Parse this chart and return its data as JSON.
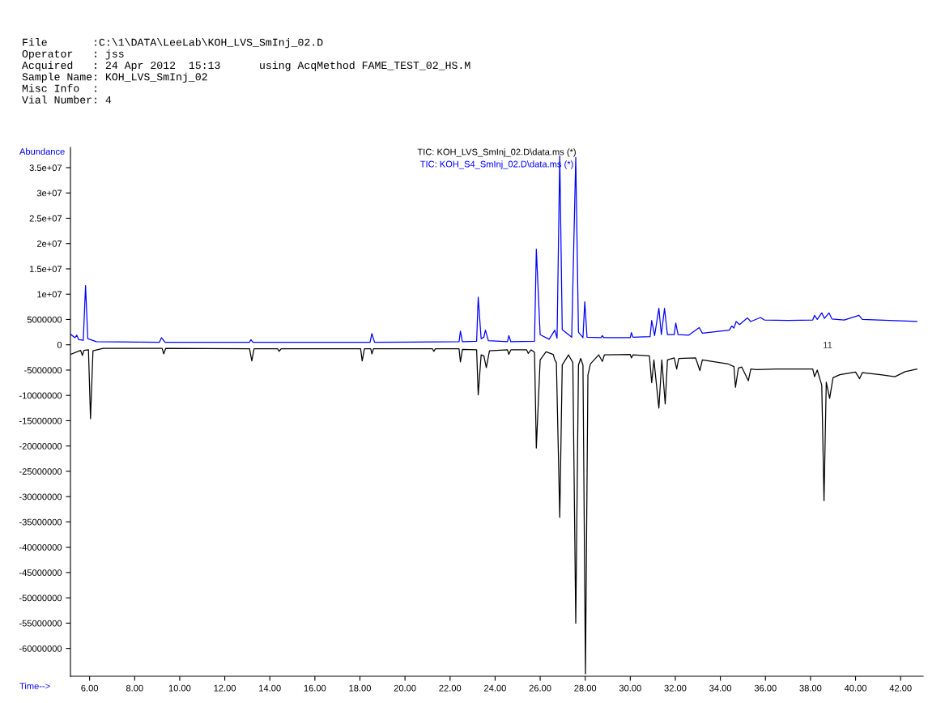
{
  "chart_data": {
    "type": "line",
    "ylabel": "Abundance",
    "xlabel": "Time-->",
    "title": "File       :C:\\1\\DATA\\LeeLab\\KOH_LVS_SmInj_02.D\nOperator   : jss\nAcquired   : 24 Apr 2012  15:13      using AcqMethod FAME_TEST_02_HS.M\nSample Name: KOH_LVS_SmInj_02\nMisc Info  :\nVial Number: 4",
    "annotations": [
      "11"
    ],
    "series": [
      {
        "name": "TIC: KOH_LVS_SmInj_02.D\\data.ms (*)",
        "color": "#000000",
        "x": [
          5.15,
          5.6,
          5.68,
          5.75,
          5.95,
          6.04,
          6.15,
          6.6,
          9.22,
          9.29,
          9.38,
          13.1,
          13.2,
          13.3,
          14.35,
          14.41,
          14.5,
          18.03,
          18.1,
          18.2,
          18.48,
          18.53,
          18.6,
          21.22,
          21.28,
          21.35,
          22.4,
          22.46,
          22.55,
          23.18,
          23.25,
          23.38,
          23.5,
          23.61,
          23.75,
          24.55,
          24.61,
          24.7,
          25.4,
          25.47,
          25.6,
          25.75,
          25.83,
          26.0,
          26.26,
          26.58,
          26.65,
          26.72,
          26.87,
          26.98,
          27.26,
          27.45,
          27.58,
          27.7,
          27.8,
          27.9,
          28.01,
          28.12,
          28.23,
          28.6,
          28.76,
          28.85,
          30.0,
          30.05,
          30.12,
          30.85,
          30.95,
          31.05,
          31.27,
          31.4,
          31.55,
          31.65,
          31.95,
          32.06,
          32.15,
          32.9,
          33.09,
          33.2,
          34.35,
          34.6,
          34.67,
          34.8,
          34.95,
          35.24,
          35.35,
          35.6,
          36.5,
          38.1,
          38.18,
          38.3,
          38.5,
          38.6,
          38.7,
          38.85,
          39.0,
          39.3,
          40.0,
          40.18,
          40.3,
          41.11,
          41.75,
          42.2,
          42.72
        ],
        "values": [
          -1900000,
          -1100000,
          -2100000,
          -1100000,
          -1000000,
          -14600000,
          -1200000,
          -700000,
          -700000,
          -1800000,
          -700000,
          -800000,
          -3200000,
          -800000,
          -800000,
          -1300000,
          -800000,
          -800000,
          -3200000,
          -800000,
          -800000,
          -1800000,
          -800000,
          -800000,
          -1300000,
          -800000,
          -800000,
          -3400000,
          -900000,
          -1000000,
          -9900000,
          -2000000,
          -2200000,
          -4500000,
          -1200000,
          -1000000,
          -1900000,
          -1000000,
          -1000000,
          -1700000,
          -1000000,
          -1500000,
          -20400000,
          -3000000,
          -1400000,
          -1900000,
          -3000000,
          -3500000,
          -34100000,
          -4000000,
          -2000000,
          -3500000,
          -55000000,
          -4000000,
          -2700000,
          -4000000,
          -65000000,
          -6000000,
          -3800000,
          -2000000,
          -3300000,
          -2000000,
          -1900000,
          -2600000,
          -2000000,
          -2200000,
          -7500000,
          -3000000,
          -12500000,
          -3000000,
          -11700000,
          -3000000,
          -2600000,
          -4800000,
          -2700000,
          -2600000,
          -5100000,
          -3000000,
          -3800000,
          -4300000,
          -8400000,
          -4600000,
          -4400000,
          -7100000,
          -4800000,
          -4900000,
          -4800000,
          -4800000,
          -6300000,
          -5000000,
          -8000000,
          -30800000,
          -7400000,
          -10600000,
          -6500000,
          -5900000,
          -5400000,
          -6700000,
          -5500000,
          -5900000,
          -6300000,
          -5300000,
          -4800000
        ]
      },
      {
        "name": "TIC: KOH_S4_SmInj_02.D\\data.ms (*)",
        "color": "#0000ff",
        "x": [
          5.15,
          5.35,
          5.43,
          5.52,
          5.72,
          5.82,
          5.92,
          6.3,
          9.1,
          9.19,
          9.35,
          13.1,
          13.16,
          13.25,
          18.45,
          18.53,
          18.65,
          22.4,
          22.46,
          22.55,
          23.18,
          23.25,
          23.38,
          23.5,
          23.57,
          23.7,
          24.55,
          24.61,
          24.7,
          25.75,
          25.83,
          26.0,
          26.4,
          26.65,
          26.75,
          26.87,
          26.98,
          27.4,
          27.58,
          27.7,
          27.9,
          27.98,
          28.08,
          28.7,
          28.76,
          28.82,
          30.0,
          30.05,
          30.12,
          30.88,
          30.95,
          31.08,
          31.27,
          31.38,
          31.52,
          31.65,
          31.95,
          32.02,
          32.12,
          32.6,
          33.06,
          33.2,
          34.4,
          34.5,
          34.6,
          34.7,
          34.85,
          35.2,
          35.35,
          35.78,
          35.95,
          37.0,
          38.1,
          38.18,
          38.3,
          38.5,
          38.62,
          38.82,
          38.95,
          39.5,
          40.15,
          40.3,
          41.5,
          42.72
        ],
        "values": [
          2100000,
          1400000,
          1900000,
          1000000,
          900000,
          11700000,
          1200000,
          600000,
          500000,
          1400000,
          500000,
          500000,
          1000000,
          500000,
          500000,
          2200000,
          500000,
          600000,
          2700000,
          600000,
          700000,
          9400000,
          1200000,
          1500000,
          2900000,
          800000,
          600000,
          1800000,
          600000,
          700000,
          18900000,
          2000000,
          1100000,
          2900000,
          1300000,
          37300000,
          3000000,
          1500000,
          37000000,
          2500000,
          1400000,
          8500000,
          1500000,
          1400000,
          1800000,
          1400000,
          1400000,
          2400000,
          1500000,
          1600000,
          4800000,
          1800000,
          7200000,
          2000000,
          7200000,
          2000000,
          2000000,
          4300000,
          2000000,
          1900000,
          3400000,
          2300000,
          2900000,
          3700000,
          3300000,
          4600000,
          4000000,
          5300000,
          4600000,
          5400000,
          4900000,
          4800000,
          4900000,
          5800000,
          5000000,
          6300000,
          5200000,
          6300000,
          5100000,
          4900000,
          5800000,
          5000000,
          4800000,
          4600000
        ]
      }
    ],
    "xlim": [
      5.15,
      43.0
    ],
    "xticks": [
      {
        "value": 6,
        "label": "6.00"
      },
      {
        "value": 8,
        "label": "8.00"
      },
      {
        "value": 10,
        "label": "10.00"
      },
      {
        "value": 12,
        "label": "12.00"
      },
      {
        "value": 14,
        "label": "14.00"
      },
      {
        "value": 16,
        "label": "16.00"
      },
      {
        "value": 18,
        "label": "18.00"
      },
      {
        "value": 20,
        "label": "20.00"
      },
      {
        "value": 22,
        "label": "22.00"
      },
      {
        "value": 24,
        "label": "24.00"
      },
      {
        "value": 26,
        "label": "26.00"
      },
      {
        "value": 28,
        "label": "28.00"
      },
      {
        "value": 30,
        "label": "30.00"
      },
      {
        "value": 32,
        "label": "32.00"
      },
      {
        "value": 34,
        "label": "34.00"
      },
      {
        "value": 36,
        "label": "36.00"
      },
      {
        "value": 38,
        "label": "38.00"
      },
      {
        "value": 40,
        "label": "40.00"
      },
      {
        "value": 42,
        "label": "42.00"
      }
    ],
    "ylim": [
      -65500000,
      39000000
    ],
    "yticks": [
      {
        "value": 35000000,
        "label": "3.5e+07"
      },
      {
        "value": 30000000,
        "label": "3e+07"
      },
      {
        "value": 25000000,
        "label": "2.5e+07"
      },
      {
        "value": 20000000,
        "label": "2e+07"
      },
      {
        "value": 15000000,
        "label": "1.5e+07"
      },
      {
        "value": 10000000,
        "label": "1e+07"
      },
      5000000,
      0,
      -5000000,
      -10000000,
      -15000000,
      -20000000,
      -25000000,
      -30000000,
      -35000000,
      -40000000,
      -45000000,
      -50000000,
      -55000000,
      -60000000
    ],
    "grid": false,
    "legend": false,
    "marker": "none",
    "line_style": "solid"
  }
}
